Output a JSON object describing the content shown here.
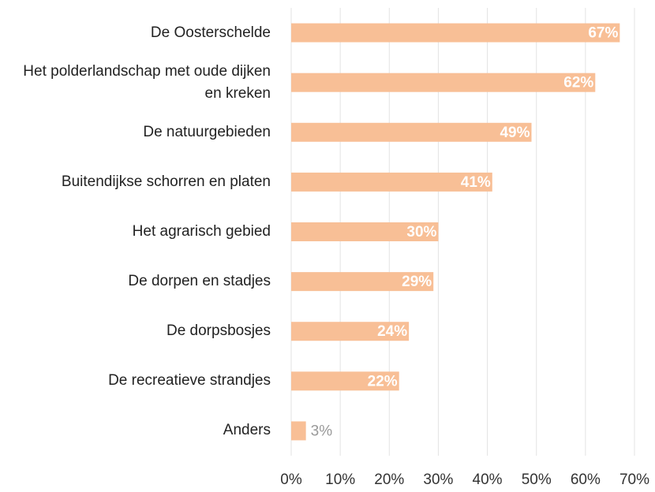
{
  "chart_data": {
    "type": "hbar",
    "categories": [
      "De Oosterschelde",
      "Het polderlandschap met oude dijken en kreken",
      "De natuurgebieden",
      "Buitendijkse schorren en platen",
      "Het agrarisch gebied",
      "De dorpen en stadjes",
      "De dorpsbosjes",
      "De recreatieve strandjes",
      "Anders"
    ],
    "values": [
      67,
      62,
      49,
      41,
      30,
      29,
      24,
      22,
      3
    ],
    "value_labels": [
      "67%",
      "62%",
      "49%",
      "41%",
      "30%",
      "29%",
      "24%",
      "22%",
      "3%"
    ],
    "color": "#f8bf96",
    "xlim": [
      0,
      70
    ],
    "xticks": [
      {
        "value": 0,
        "label": "0%"
      },
      {
        "value": 10,
        "label": "10%"
      },
      {
        "value": 20,
        "label": "20%"
      },
      {
        "value": 30,
        "label": "30%"
      },
      {
        "value": 40,
        "label": "40%"
      },
      {
        "value": 50,
        "label": "50%"
      },
      {
        "value": 60,
        "label": "60%"
      },
      {
        "value": 70,
        "label": "70%"
      }
    ],
    "grid": true
  }
}
